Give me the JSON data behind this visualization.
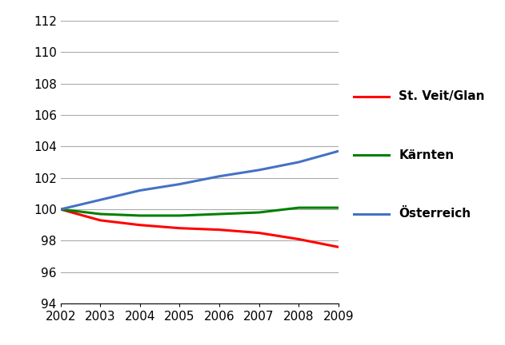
{
  "years": [
    2002,
    2003,
    2004,
    2005,
    2006,
    2007,
    2008,
    2009
  ],
  "st_veit": [
    100.0,
    99.3,
    99.0,
    98.8,
    98.7,
    98.5,
    98.1,
    97.6
  ],
  "kaernten": [
    100.0,
    99.7,
    99.6,
    99.6,
    99.7,
    99.8,
    100.1,
    100.1
  ],
  "oesterreich": [
    100.0,
    100.6,
    101.2,
    101.6,
    102.1,
    102.5,
    103.0,
    103.7
  ],
  "st_veit_color": "#FF0000",
  "kaernten_color": "#008000",
  "oesterreich_color": "#4472C4",
  "line_width": 2.2,
  "ylim": [
    94,
    112
  ],
  "yticks": [
    94,
    96,
    98,
    100,
    102,
    104,
    106,
    108,
    110,
    112
  ],
  "xlim_min": 2002,
  "xlim_max": 2009,
  "legend_labels": [
    "St. Veit/Glan",
    "Kärnten",
    "Österreich"
  ],
  "bg_color": "#FFFFFF",
  "grid_color": "#AAAAAA",
  "tick_fontsize": 11,
  "legend_fontsize": 11
}
